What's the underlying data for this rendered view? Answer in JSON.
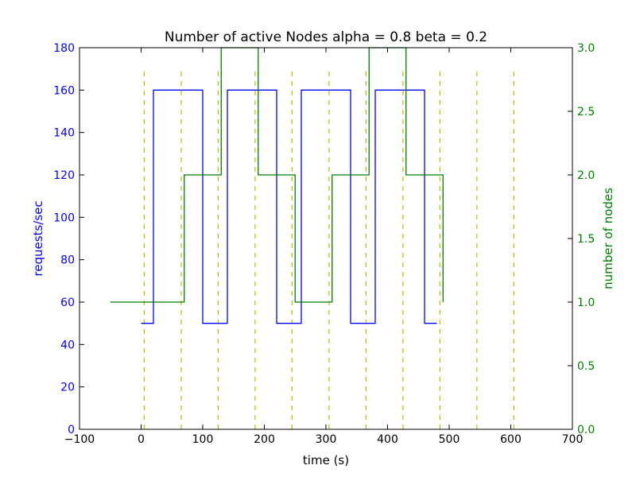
{
  "chart_data": {
    "type": "line",
    "title": "Number of active Nodes alpha = 0.8 beta = 0.2",
    "xlabel": "time (s)",
    "ylabel_left": "requests/sec",
    "ylabel_right": "number of nodes",
    "xlim": [
      -100,
      700
    ],
    "ylim_left": [
      0,
      180
    ],
    "ylim_right": [
      0.0,
      3.0
    ],
    "x_ticks": [
      -100,
      0,
      100,
      200,
      300,
      400,
      500,
      600,
      700
    ],
    "x_tick_labels": [
      "−100",
      "0",
      "100",
      "200",
      "300",
      "400",
      "500",
      "600",
      "700"
    ],
    "y_left_ticks": [
      0,
      20,
      40,
      60,
      80,
      100,
      120,
      140,
      160,
      180
    ],
    "y_left_tick_labels": [
      "0",
      "20",
      "40",
      "60",
      "80",
      "100",
      "120",
      "140",
      "160",
      "180"
    ],
    "y_right_ticks": [
      0.0,
      0.5,
      1.0,
      1.5,
      2.0,
      2.5,
      3.0
    ],
    "y_right_tick_labels": [
      "0.0",
      "0.5",
      "1.0",
      "1.5",
      "2.0",
      "2.5",
      "3.0"
    ],
    "grid": false,
    "colors": {
      "requests": "#0000ff",
      "nodes": "#008000",
      "markers": "#bfbf00",
      "axes": "#000000"
    },
    "series": [
      {
        "axis": "left",
        "step": true,
        "x": [
          0,
          20,
          20,
          100,
          100,
          140,
          140,
          220,
          220,
          260,
          260,
          340,
          340,
          380,
          380,
          460,
          460,
          480
        ],
        "y": [
          50,
          50,
          160,
          160,
          50,
          50,
          160,
          160,
          50,
          50,
          160,
          160,
          50,
          50,
          160,
          160,
          50,
          50
        ]
      },
      {
        "axis": "right",
        "step": true,
        "x": [
          -50,
          70,
          70,
          130,
          130,
          190,
          190,
          250,
          250,
          310,
          310,
          370,
          370,
          430,
          430,
          490,
          490
        ],
        "y": [
          1,
          1,
          2,
          2,
          3,
          3,
          2,
          2,
          1,
          1,
          2,
          2,
          3,
          3,
          2,
          2,
          1
        ]
      }
    ],
    "vertical_markers": {
      "x": [
        5,
        65,
        125,
        185,
        245,
        305,
        365,
        425,
        485,
        545,
        605
      ],
      "y_range": [
        0,
        170
      ],
      "style": "dashed"
    }
  }
}
